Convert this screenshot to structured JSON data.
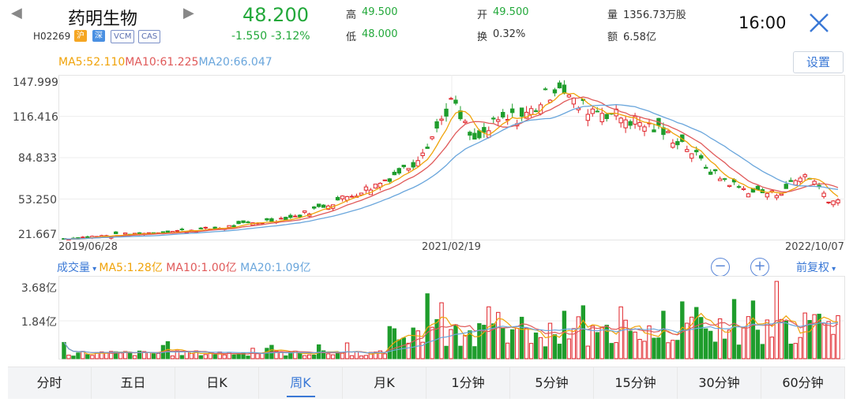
{
  "header": {
    "name": "药明生物",
    "code": "H02269",
    "tags": [
      "沪",
      "深",
      "VCM",
      "CAS"
    ],
    "price": "48.200",
    "change": "-1.550",
    "change_pct": "-3.12%",
    "high_label": "高",
    "high": "49.500",
    "low_label": "低",
    "low": "48.000",
    "open_label": "开",
    "open": "49.500",
    "turnover_label": "换",
    "turnover": "0.32%",
    "volume_label": "量",
    "volume": "1356.73万股",
    "amount_label": "额",
    "amount": "6.58亿",
    "time": "16:00"
  },
  "price_chart": {
    "ma5": "MA5:52.110",
    "ma10": "MA10:61.225",
    "ma20": "MA20:66.047",
    "settings": "设置",
    "yticks": [
      "147.999",
      "116.416",
      "84.833",
      "53.250",
      "21.667"
    ],
    "xticks": [
      "2019/06/28",
      "2021/02/19",
      "2022/10/07"
    ]
  },
  "volume_chart": {
    "label": "成交量",
    "ma5": "MA5:1.28亿",
    "ma10": "MA10:1.00亿",
    "ma20": "MA20:1.09亿",
    "adjust": "前复权",
    "yticks": [
      "3.68亿",
      "1.84亿"
    ]
  },
  "tabs": [
    "分时",
    "五日",
    "日K",
    "周K",
    "月K",
    "1分钟",
    "5分钟",
    "15分钟",
    "30分钟",
    "60分钟"
  ],
  "active_tab": 3,
  "colors": {
    "up": "#e0242a",
    "down": "#1f9d2c",
    "ma5": "#f0a30a",
    "ma10": "#e05a5a",
    "ma20": "#6aa6dc",
    "accent": "#3a78d6"
  },
  "chart_data": {
    "type": "candlestick",
    "x_range": [
      "2019/06/28",
      "2022/10/07"
    ],
    "ylim": [
      21.667,
      147.999
    ],
    "close_path": [
      [
        0,
        23
      ],
      [
        0.1,
        27
      ],
      [
        0.2,
        31
      ],
      [
        0.3,
        40
      ],
      [
        0.4,
        63
      ],
      [
        0.45,
        80
      ],
      [
        0.48,
        105
      ],
      [
        0.5,
        128
      ],
      [
        0.53,
        96
      ],
      [
        0.56,
        112
      ],
      [
        0.6,
        118
      ],
      [
        0.64,
        142
      ],
      [
        0.66,
        125
      ],
      [
        0.7,
        120
      ],
      [
        0.76,
        108
      ],
      [
        0.8,
        96
      ],
      [
        0.84,
        72
      ],
      [
        0.88,
        60
      ],
      [
        0.92,
        57
      ],
      [
        0.96,
        73
      ],
      [
        0.99,
        52
      ]
    ],
    "volume_max": "3.68亿"
  }
}
